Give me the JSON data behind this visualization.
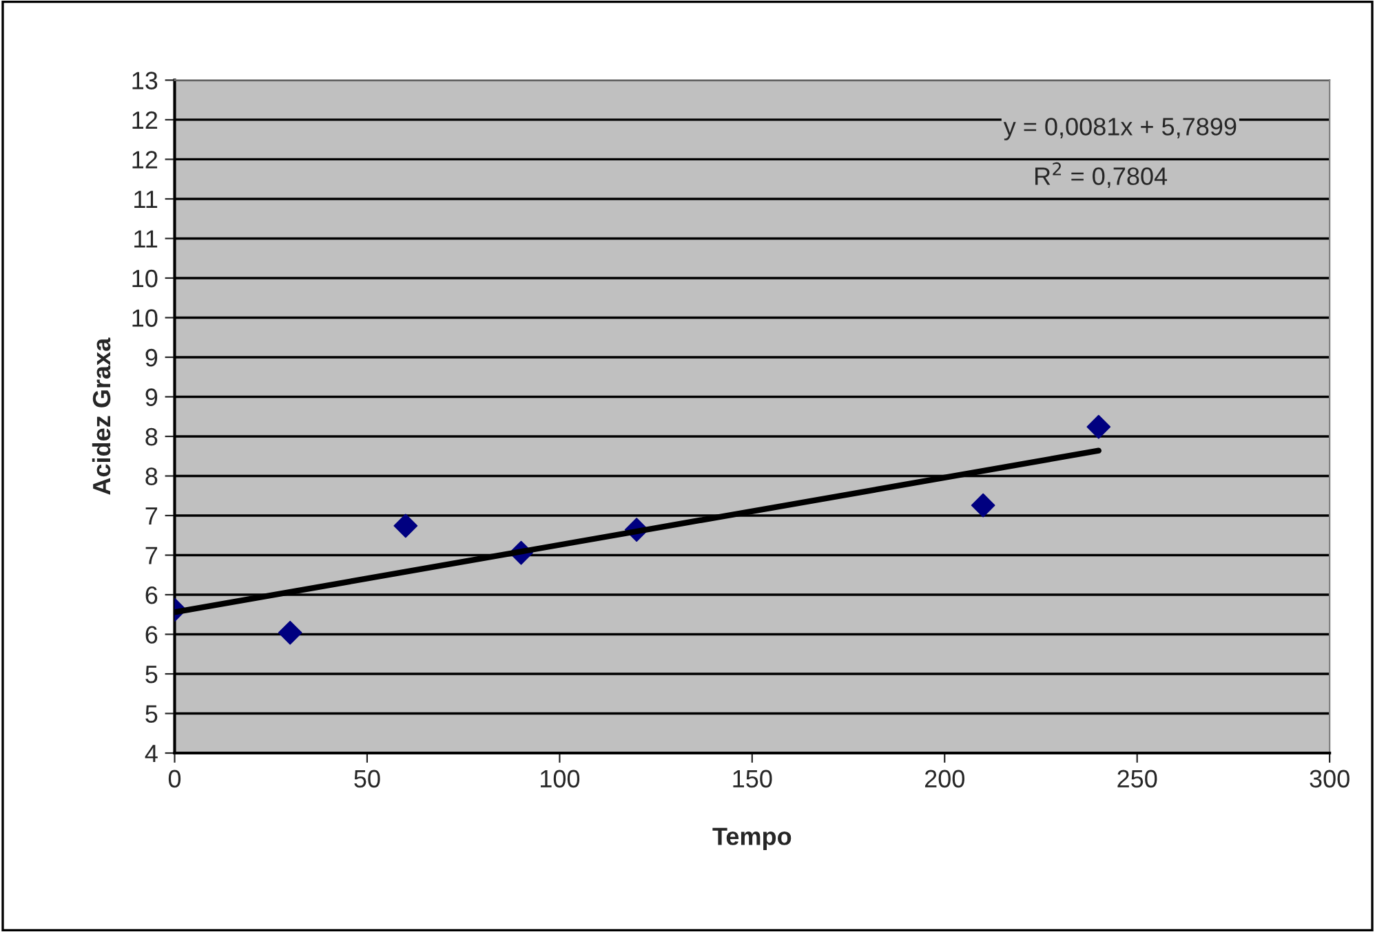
{
  "chart_data": {
    "type": "scatter",
    "xlabel": "Tempo",
    "ylabel": "Acidez Graxa",
    "series": [
      {
        "color": "#000080",
        "marker": "diamond",
        "x": [
          0,
          30,
          60,
          90,
          120,
          210,
          240
        ],
        "values": [
          5.81,
          5.52,
          6.87,
          6.53,
          6.82,
          7.13,
          8.12
        ]
      },
      {
        "type": "line",
        "color": "#000000",
        "marker": "none",
        "line_style": "solid",
        "x": [
          0,
          240
        ],
        "values": [
          5.78,
          7.82
        ]
      }
    ],
    "annotations": [
      "y = 0,0081x + 5,7899",
      "R$^{2}$ = 0,7804"
    ],
    "xlim": [
      0,
      300
    ],
    "xticks": [
      0,
      50,
      100,
      150,
      200,
      250,
      300
    ],
    "ylim": [
      4,
      12.5
    ],
    "yticks": [
      4,
      {
        "value": 4.5,
        "label": "5"
      },
      5,
      {
        "value": 5.5,
        "label": "6"
      },
      6,
      {
        "value": 6.5,
        "label": "7"
      },
      7,
      {
        "value": 7.5,
        "label": "8"
      },
      8,
      {
        "value": 8.5,
        "label": "9"
      },
      9,
      {
        "value": 9.5,
        "label": "10"
      },
      10,
      {
        "value": 10.5,
        "label": "11"
      },
      11,
      {
        "value": 11.5,
        "label": "12"
      },
      12,
      {
        "value": 12.5,
        "label": "13"
      }
    ],
    "grid": "y"
  }
}
